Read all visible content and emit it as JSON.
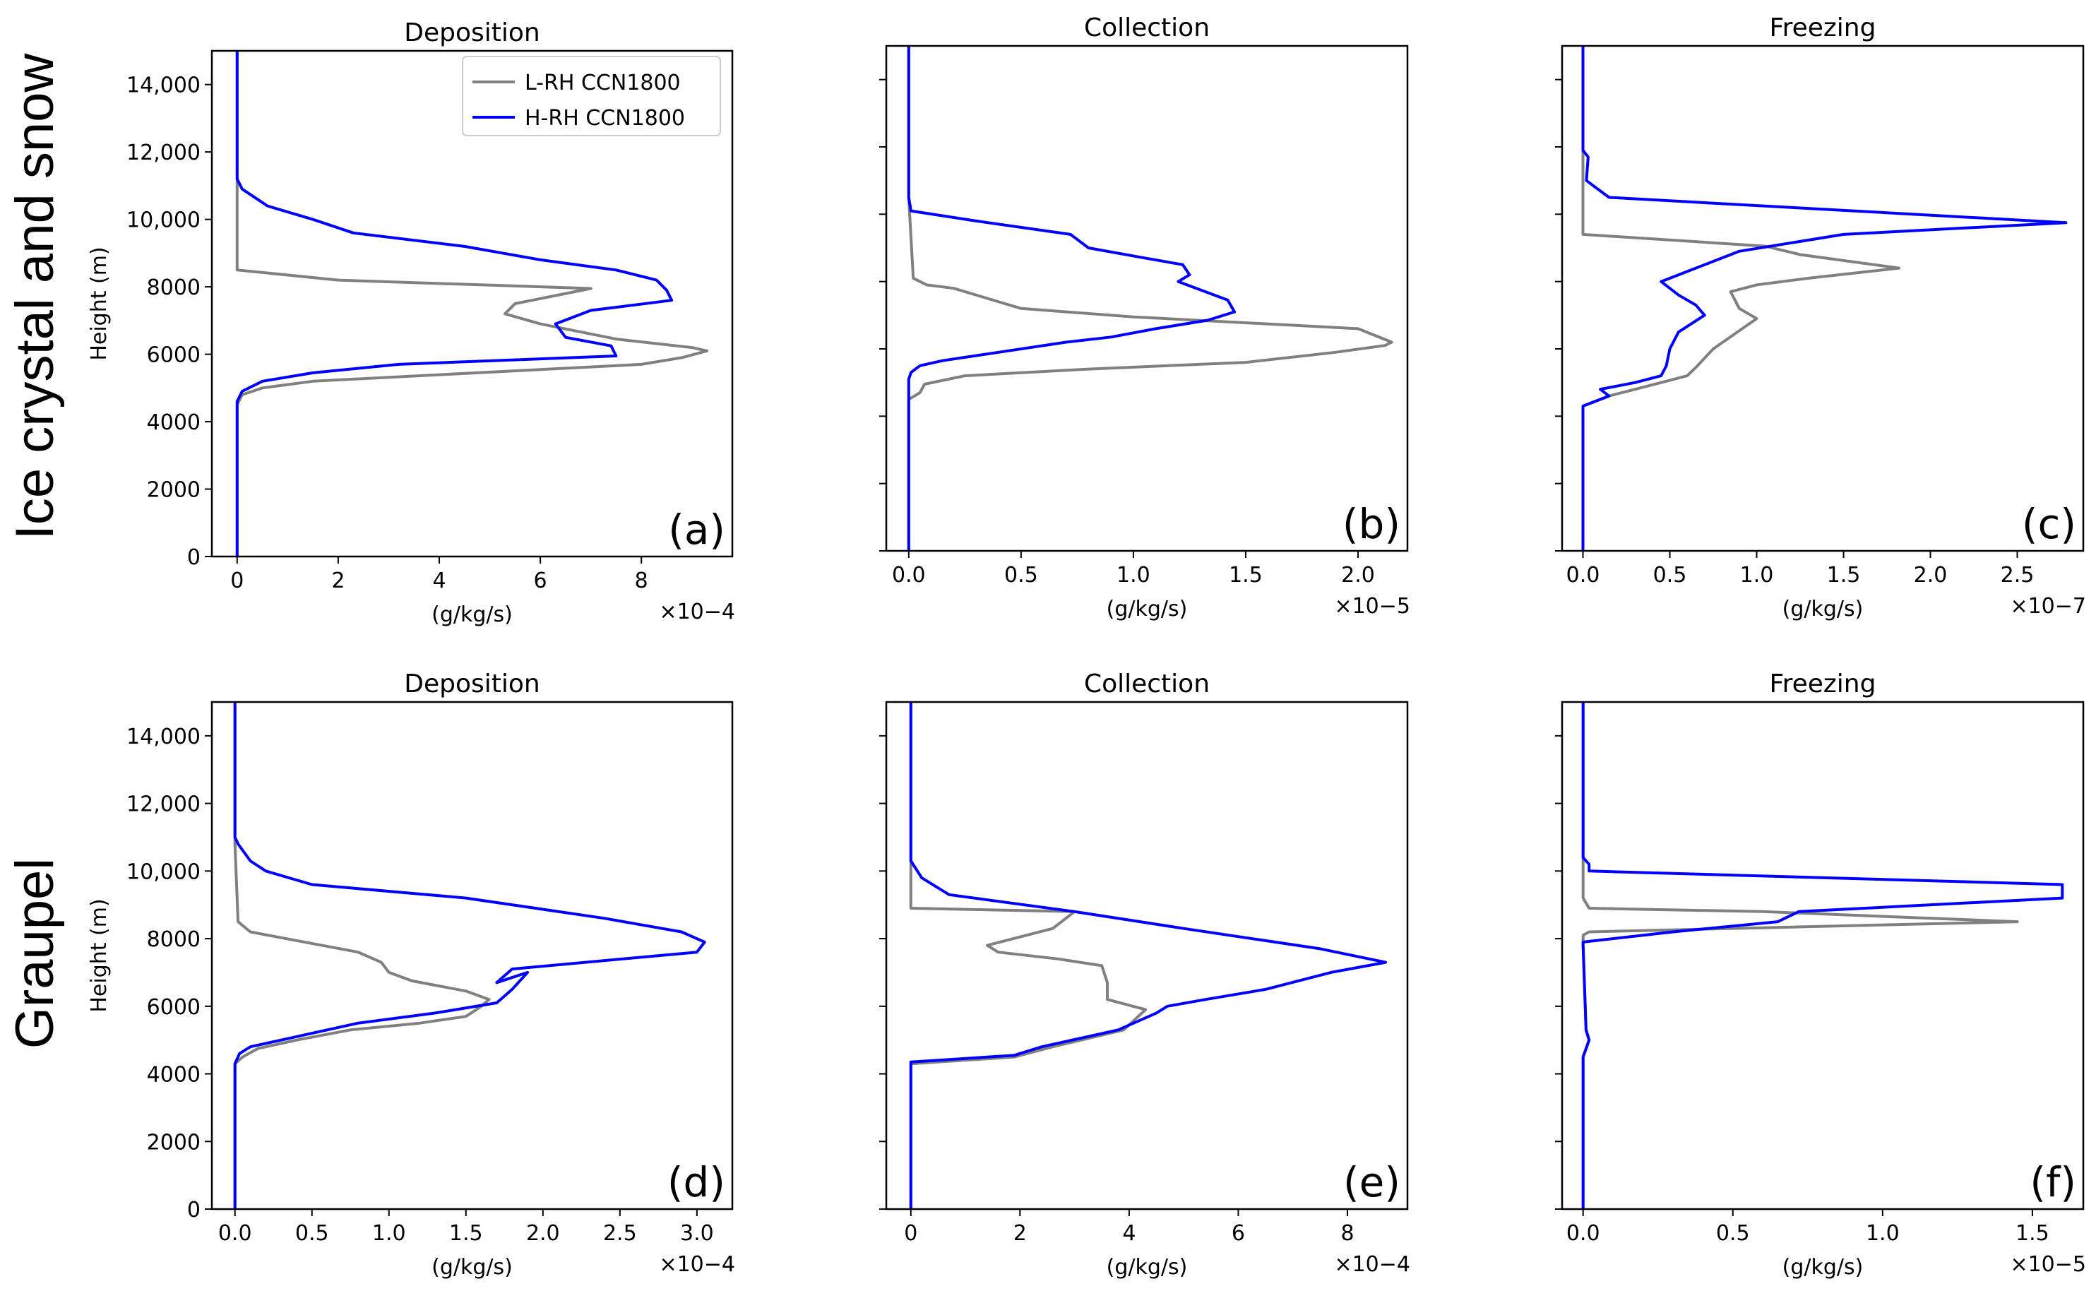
{
  "row_labels": [
    "Ice crystal and snow",
    "Graupel"
  ],
  "legend": [
    {
      "name": "L-RH CCN1800",
      "color": "#808080"
    },
    {
      "name": "H-RH CCN1800",
      "color": "#0000ff"
    }
  ],
  "colors": {
    "L": "#808080",
    "H": "#0000ff",
    "axis": "#000000"
  },
  "chart_data": [
    {
      "type": "line",
      "panel": "(a)",
      "title": "Deposition",
      "xlabel": "(g/kg/s)",
      "ylabel": "Height (m)",
      "multiplier": "×10−4",
      "xlim": [
        -0.5,
        9.8
      ],
      "ylim": [
        0,
        15000
      ],
      "xticks": [
        0,
        2,
        4,
        6,
        8
      ],
      "xticklabels": [
        "0",
        "2",
        "4",
        "6",
        "8"
      ],
      "yticks": [
        0,
        2000,
        4000,
        6000,
        8000,
        10000,
        12000,
        14000
      ],
      "yticklabels": [
        "0",
        "2000",
        "4000",
        "6000",
        "8000",
        "10,000",
        "12,000",
        "14,000"
      ],
      "show_yticklabels": true,
      "show_ylabel": true,
      "legend": true,
      "series": [
        {
          "name": "L-RH CCN1800",
          "x": [
            0,
            0,
            0.1,
            0.5,
            1.5,
            8.0,
            8.8,
            9.3,
            9.0,
            7.5,
            6.0,
            5.3,
            5.5,
            7.0,
            2.0,
            0,
            0,
            0
          ],
          "y": [
            0,
            4500,
            4800,
            5000,
            5200,
            5700,
            5900,
            6100,
            6200,
            6450,
            6900,
            7200,
            7500,
            7950,
            8200,
            8500,
            11000,
            15000
          ]
        },
        {
          "name": "H-RH CCN1800",
          "x": [
            0,
            0,
            0.1,
            0.5,
            1.5,
            3.2,
            7.5,
            7.4,
            6.5,
            6.3,
            7.0,
            8.6,
            8.5,
            8.3,
            7.5,
            6.0,
            4.5,
            2.3,
            1.5,
            0.6,
            0.1,
            0,
            0
          ],
          "y": [
            0,
            4600,
            4900,
            5200,
            5450,
            5700,
            5950,
            6250,
            6500,
            6900,
            7300,
            7600,
            7900,
            8200,
            8500,
            8800,
            9200,
            9600,
            10000,
            10400,
            10900,
            11200,
            15000
          ]
        }
      ]
    },
    {
      "type": "line",
      "panel": "(b)",
      "title": "Collection",
      "xlabel": "(g/kg/s)",
      "ylabel": "",
      "multiplier": "×10−5",
      "xlim": [
        -0.1,
        2.22
      ],
      "ylim": [
        0,
        15000
      ],
      "xticks": [
        0,
        0.5,
        1.0,
        1.5,
        2.0
      ],
      "xticklabels": [
        "0.0",
        "0.5",
        "1.0",
        "1.5",
        "2.0"
      ],
      "yticks": [
        0,
        2000,
        4000,
        6000,
        8000,
        10000,
        12000,
        14000
      ],
      "yticklabels": [],
      "show_yticklabels": false,
      "show_ylabel": false,
      "legend": false,
      "series": [
        {
          "name": "L-RH CCN1800",
          "x": [
            0,
            0,
            0.05,
            0.07,
            0.25,
            0.8,
            1.5,
            1.9,
            2.12,
            2.15,
            2.0,
            1.0,
            0.5,
            0.35,
            0.2,
            0.08,
            0.02,
            0,
            0
          ],
          "y": [
            0,
            4500,
            4700,
            4950,
            5200,
            5400,
            5600,
            5900,
            6100,
            6200,
            6600,
            6950,
            7200,
            7500,
            7800,
            7900,
            8100,
            10500,
            15000
          ]
        },
        {
          "name": "H-RH CCN1800",
          "x": [
            0,
            0,
            0.01,
            0.05,
            0.15,
            0.4,
            0.7,
            0.9,
            1.1,
            1.33,
            1.45,
            1.42,
            1.3,
            1.2,
            1.25,
            1.22,
            1.05,
            0.8,
            0.72,
            0.3,
            0.01,
            0,
            0
          ],
          "y": [
            0,
            5100,
            5300,
            5500,
            5650,
            5900,
            6200,
            6350,
            6600,
            6850,
            7100,
            7450,
            7750,
            8000,
            8200,
            8500,
            8700,
            9000,
            9400,
            9800,
            10100,
            10500,
            15000
          ]
        }
      ]
    },
    {
      "type": "line",
      "panel": "(c)",
      "title": "Freezing",
      "xlabel": "(g/kg/s)",
      "ylabel": "",
      "multiplier": "×10−7",
      "xlim": [
        -0.12,
        2.88
      ],
      "ylim": [
        0,
        15000
      ],
      "xticks": [
        0,
        0.5,
        1.0,
        1.5,
        2.0,
        2.5
      ],
      "xticklabels": [
        "0.0",
        "0.5",
        "1.0",
        "1.5",
        "2.0",
        "2.5"
      ],
      "yticks": [
        0,
        2000,
        4000,
        6000,
        8000,
        10000,
        12000,
        14000
      ],
      "yticklabels": [],
      "show_yticklabels": false,
      "show_ylabel": false,
      "legend": false,
      "series": [
        {
          "name": "L-RH CCN1800",
          "x": [
            0,
            0,
            0.15,
            0.3,
            0.45,
            0.6,
            0.65,
            0.75,
            1.0,
            0.9,
            0.85,
            1.0,
            1.3,
            1.82,
            1.25,
            1.05,
            0,
            0,
            0
          ],
          "y": [
            0,
            4300,
            4600,
            4800,
            5000,
            5200,
            5450,
            6000,
            6900,
            7200,
            7700,
            7900,
            8100,
            8400,
            8800,
            9050,
            9400,
            11000,
            15000
          ]
        },
        {
          "name": "H-RH CCN1800",
          "x": [
            0,
            0,
            0.15,
            0.1,
            0.3,
            0.45,
            0.48,
            0.5,
            0.55,
            0.7,
            0.65,
            0.55,
            0.45,
            0.9,
            1.5,
            2.78,
            0.15,
            0.02,
            0.03,
            0,
            0
          ],
          "y": [
            0,
            4300,
            4600,
            4800,
            5000,
            5200,
            5500,
            6000,
            6500,
            7000,
            7300,
            7600,
            8000,
            8900,
            9400,
            9750,
            10500,
            11000,
            11700,
            11900,
            15000
          ]
        }
      ]
    },
    {
      "type": "line",
      "panel": "(d)",
      "title": "Deposition",
      "xlabel": "(g/kg/s)",
      "ylabel": "Height (m)",
      "multiplier": "×10−4",
      "xlim": [
        -0.15,
        3.23
      ],
      "ylim": [
        0,
        15000
      ],
      "xticks": [
        0,
        0.5,
        1.0,
        1.5,
        2.0,
        2.5,
        3.0
      ],
      "xticklabels": [
        "0.0",
        "0.5",
        "1.0",
        "1.5",
        "2.0",
        "2.5",
        "3.0"
      ],
      "yticks": [
        0,
        2000,
        4000,
        6000,
        8000,
        10000,
        12000,
        14000
      ],
      "yticklabels": [
        "0",
        "2000",
        "4000",
        "6000",
        "8000",
        "10,000",
        "12,000",
        "14,000"
      ],
      "show_yticklabels": true,
      "show_ylabel": true,
      "legend": false,
      "series": [
        {
          "name": "L-RH CCN1800",
          "x": [
            0,
            0,
            0.05,
            0.15,
            0.4,
            0.75,
            1.2,
            1.5,
            1.6,
            1.65,
            1.5,
            1.15,
            1.0,
            0.95,
            0.8,
            0.1,
            0.02,
            0,
            0
          ],
          "y": [
            0,
            4300,
            4500,
            4750,
            5000,
            5300,
            5500,
            5700,
            6000,
            6200,
            6450,
            6750,
            7000,
            7300,
            7600,
            8200,
            8500,
            10800,
            15000
          ]
        },
        {
          "name": "H-RH CCN1800",
          "x": [
            0,
            0,
            0.03,
            0.1,
            0.3,
            0.5,
            0.8,
            1.3,
            1.7,
            1.8,
            1.9,
            1.7,
            1.8,
            3.0,
            3.05,
            2.9,
            2.4,
            1.5,
            0.5,
            0.2,
            0.1,
            0.02,
            0,
            0
          ],
          "y": [
            0,
            4300,
            4600,
            4800,
            5000,
            5200,
            5500,
            5800,
            6100,
            6500,
            7000,
            6700,
            7100,
            7600,
            7900,
            8200,
            8600,
            9200,
            9600,
            10000,
            10300,
            10800,
            11000,
            15000
          ]
        }
      ]
    },
    {
      "type": "line",
      "panel": "(e)",
      "title": "Collection",
      "xlabel": "(g/kg/s)",
      "ylabel": "",
      "multiplier": "×10−4",
      "xlim": [
        -0.45,
        9.1
      ],
      "ylim": [
        0,
        15000
      ],
      "xticks": [
        0,
        2,
        4,
        6,
        8
      ],
      "xticklabels": [
        "0",
        "2",
        "4",
        "6",
        "8"
      ],
      "yticks": [
        0,
        2000,
        4000,
        6000,
        8000,
        10000,
        12000,
        14000
      ],
      "yticklabels": [],
      "show_yticklabels": false,
      "show_ylabel": false,
      "legend": false,
      "series": [
        {
          "name": "L-RH CCN1800",
          "x": [
            0,
            0,
            1.9,
            2.6,
            3.9,
            4.3,
            3.6,
            3.6,
            3.5,
            2.7,
            1.6,
            1.4,
            2.6,
            3.0,
            0,
            0,
            0
          ],
          "y": [
            0,
            4300,
            4500,
            4800,
            5300,
            5900,
            6200,
            6700,
            7200,
            7400,
            7600,
            7800,
            8300,
            8800,
            8900,
            10800,
            15000
          ]
        },
        {
          "name": "H-RH CCN1800",
          "x": [
            0,
            0,
            1.9,
            2.4,
            3.8,
            4.5,
            4.7,
            5.4,
            6.5,
            7.7,
            8.7,
            7.5,
            5.0,
            3.0,
            0.7,
            0.2,
            0,
            0
          ],
          "y": [
            0,
            4350,
            4550,
            4800,
            5300,
            5800,
            6000,
            6200,
            6500,
            7000,
            7300,
            7700,
            8300,
            8800,
            9300,
            9800,
            10300,
            15000
          ]
        }
      ]
    },
    {
      "type": "line",
      "panel": "(f)",
      "title": "Freezing",
      "xlabel": "(g/kg/s)",
      "ylabel": "",
      "multiplier": "×10−5",
      "xlim": [
        -0.07,
        1.67
      ],
      "ylim": [
        0,
        15000
      ],
      "xticks": [
        0,
        0.5,
        1.0,
        1.5
      ],
      "xticklabels": [
        "0.0",
        "0.5",
        "1.0",
        "1.5"
      ],
      "yticks": [
        0,
        2000,
        4000,
        6000,
        8000,
        10000,
        12000,
        14000
      ],
      "yticklabels": [],
      "show_yticklabels": false,
      "show_ylabel": false,
      "legend": false,
      "series": [
        {
          "name": "L-RH CCN1800",
          "x": [
            0,
            0,
            0.02,
            0.01,
            0,
            0,
            0.02,
            1.45,
            0.6,
            0.02,
            0,
            0
          ],
          "y": [
            0,
            4500,
            5000,
            5300,
            7800,
            8100,
            8200,
            8500,
            8800,
            8900,
            9200,
            15000
          ]
        },
        {
          "name": "H-RH CCN1800",
          "x": [
            0,
            0,
            0.02,
            0.01,
            0,
            0,
            0.3,
            0.65,
            0.72,
            1.6,
            1.6,
            0.02,
            0.02,
            0,
            0
          ],
          "y": [
            0,
            4500,
            5000,
            5300,
            7800,
            7900,
            8200,
            8500,
            8800,
            9200,
            9600,
            10000,
            10200,
            10400,
            15000
          ]
        }
      ]
    }
  ]
}
